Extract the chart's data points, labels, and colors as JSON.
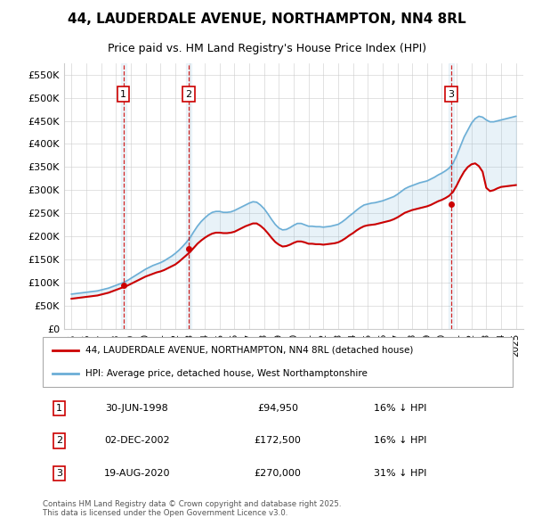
{
  "title_line1": "44, LAUDERDALE AVENUE, NORTHAMPTON, NN4 8RL",
  "title_line2": "Price paid vs. HM Land Registry's House Price Index (HPI)",
  "background_color": "#ffffff",
  "grid_color": "#cccccc",
  "hpi_color": "#6baed6",
  "price_color": "#cc0000",
  "sale_line_color": "#cc0000",
  "ylim": [
    0,
    575000
  ],
  "yticks": [
    0,
    50000,
    100000,
    150000,
    200000,
    250000,
    300000,
    350000,
    400000,
    450000,
    500000,
    550000
  ],
  "ytick_labels": [
    "£0",
    "£50K",
    "£100K",
    "£150K",
    "£200K",
    "£250K",
    "£300K",
    "£350K",
    "£400K",
    "£450K",
    "£500K",
    "£550K"
  ],
  "sales": [
    {
      "date": 1998.5,
      "price": 94950,
      "label": "1"
    },
    {
      "date": 2002.92,
      "price": 172500,
      "label": "2"
    },
    {
      "date": 2020.63,
      "price": 270000,
      "label": "3"
    }
  ],
  "legend_line1": "44, LAUDERDALE AVENUE, NORTHAMPTON, NN4 8RL (detached house)",
  "legend_line2": "HPI: Average price, detached house, West Northamptonshire",
  "table": [
    {
      "num": "1",
      "date": "30-JUN-1998",
      "price": "£94,950",
      "hpi": "16% ↓ HPI"
    },
    {
      "num": "2",
      "date": "02-DEC-2002",
      "price": "£172,500",
      "hpi": "16% ↓ HPI"
    },
    {
      "num": "3",
      "date": "19-AUG-2020",
      "price": "£270,000",
      "hpi": "31% ↓ HPI"
    }
  ],
  "footnote": "Contains HM Land Registry data © Crown copyright and database right 2025.\nThis data is licensed under the Open Government Licence v3.0.",
  "data_x": [
    1995.0,
    1995.25,
    1995.5,
    1995.75,
    1996.0,
    1996.25,
    1996.5,
    1996.75,
    1997.0,
    1997.25,
    1997.5,
    1997.75,
    1998.0,
    1998.25,
    1998.5,
    1998.75,
    1999.0,
    1999.25,
    1999.5,
    1999.75,
    2000.0,
    2000.25,
    2000.5,
    2000.75,
    2001.0,
    2001.25,
    2001.5,
    2001.75,
    2002.0,
    2002.25,
    2002.5,
    2002.75,
    2003.0,
    2003.25,
    2003.5,
    2003.75,
    2004.0,
    2004.25,
    2004.5,
    2004.75,
    2005.0,
    2005.25,
    2005.5,
    2005.75,
    2006.0,
    2006.25,
    2006.5,
    2006.75,
    2007.0,
    2007.25,
    2007.5,
    2007.75,
    2008.0,
    2008.25,
    2008.5,
    2008.75,
    2009.0,
    2009.25,
    2009.5,
    2009.75,
    2010.0,
    2010.25,
    2010.5,
    2010.75,
    2011.0,
    2011.25,
    2011.5,
    2011.75,
    2012.0,
    2012.25,
    2012.5,
    2012.75,
    2013.0,
    2013.25,
    2013.5,
    2013.75,
    2014.0,
    2014.25,
    2014.5,
    2014.75,
    2015.0,
    2015.25,
    2015.5,
    2015.75,
    2016.0,
    2016.25,
    2016.5,
    2016.75,
    2017.0,
    2017.25,
    2017.5,
    2017.75,
    2018.0,
    2018.25,
    2018.5,
    2018.75,
    2019.0,
    2019.25,
    2019.5,
    2019.75,
    2020.0,
    2020.25,
    2020.5,
    2020.75,
    2021.0,
    2021.25,
    2021.5,
    2021.75,
    2022.0,
    2022.25,
    2022.5,
    2022.75,
    2023.0,
    2023.25,
    2023.5,
    2023.75,
    2024.0,
    2024.25,
    2024.5,
    2024.75,
    2025.0
  ],
  "hpi_data_y": [
    75000,
    76000,
    77000,
    78000,
    79000,
    80000,
    81000,
    82000,
    84000,
    86000,
    88000,
    91000,
    94000,
    97000,
    100000,
    104000,
    109000,
    114000,
    119000,
    124000,
    129000,
    133000,
    137000,
    140000,
    143000,
    147000,
    152000,
    157000,
    163000,
    170000,
    178000,
    187000,
    197000,
    210000,
    222000,
    232000,
    240000,
    247000,
    252000,
    254000,
    254000,
    252000,
    252000,
    253000,
    256000,
    260000,
    264000,
    268000,
    272000,
    275000,
    274000,
    268000,
    260000,
    249000,
    237000,
    226000,
    218000,
    214000,
    215000,
    219000,
    224000,
    228000,
    228000,
    225000,
    222000,
    222000,
    221000,
    221000,
    220000,
    221000,
    222000,
    224000,
    226000,
    231000,
    237000,
    244000,
    250000,
    257000,
    263000,
    268000,
    270000,
    272000,
    273000,
    275000,
    277000,
    280000,
    283000,
    286000,
    291000,
    297000,
    303000,
    307000,
    310000,
    313000,
    316000,
    318000,
    320000,
    324000,
    328000,
    333000,
    337000,
    342000,
    348000,
    358000,
    375000,
    395000,
    415000,
    430000,
    445000,
    455000,
    460000,
    458000,
    452000,
    448000,
    448000,
    450000,
    452000,
    454000,
    456000,
    458000,
    460000
  ],
  "price_data_y": [
    65000,
    66000,
    67000,
    68000,
    69000,
    70000,
    71000,
    72000,
    74000,
    76000,
    78000,
    81000,
    84000,
    87000,
    90000,
    93000,
    97000,
    101000,
    105000,
    109000,
    113000,
    116000,
    119000,
    122000,
    124000,
    127000,
    131000,
    135000,
    139000,
    145000,
    152000,
    159000,
    166000,
    175000,
    184000,
    191000,
    197000,
    202000,
    206000,
    208000,
    208000,
    207000,
    207000,
    208000,
    210000,
    214000,
    218000,
    222000,
    225000,
    228000,
    228000,
    223000,
    216000,
    207000,
    197000,
    188000,
    182000,
    178000,
    179000,
    182000,
    186000,
    189000,
    189000,
    187000,
    184000,
    184000,
    183000,
    183000,
    182000,
    183000,
    184000,
    185000,
    187000,
    191000,
    196000,
    202000,
    207000,
    213000,
    218000,
    222000,
    224000,
    225000,
    226000,
    228000,
    230000,
    232000,
    234000,
    237000,
    241000,
    246000,
    251000,
    254000,
    257000,
    259000,
    261000,
    263000,
    265000,
    268000,
    272000,
    276000,
    279000,
    283000,
    288000,
    296000,
    310000,
    326000,
    340000,
    350000,
    356000,
    358000,
    352000,
    340000,
    305000,
    298000,
    300000,
    304000,
    307000,
    308000,
    309000,
    310000,
    311000
  ],
  "xlim": [
    1994.5,
    2025.5
  ],
  "xticks": [
    1995,
    1996,
    1997,
    1998,
    1999,
    2000,
    2001,
    2002,
    2003,
    2004,
    2005,
    2006,
    2007,
    2008,
    2009,
    2010,
    2011,
    2012,
    2013,
    2014,
    2015,
    2016,
    2017,
    2018,
    2019,
    2020,
    2021,
    2022,
    2023,
    2024,
    2025
  ]
}
